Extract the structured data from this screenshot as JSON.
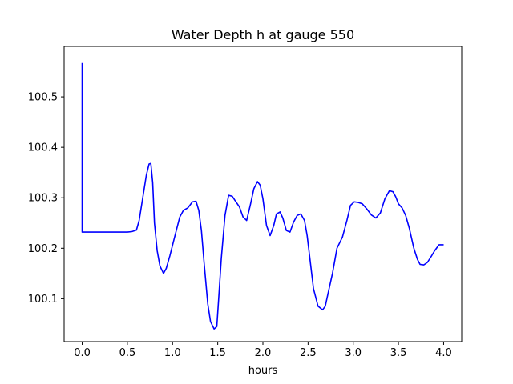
{
  "chart_data": {
    "type": "line",
    "title": "Water Depth h at gauge 550",
    "xlabel": "hours",
    "ylabel": "",
    "xlim": [
      -0.2,
      4.2
    ],
    "ylim": [
      100.015,
      100.6
    ],
    "xticks": [
      0.0,
      0.5,
      1.0,
      1.5,
      2.0,
      2.5,
      3.0,
      3.5,
      4.0
    ],
    "xtick_labels": [
      "0.0",
      "0.5",
      "1.0",
      "1.5",
      "2.0",
      "2.5",
      "3.0",
      "3.5",
      "4.0"
    ],
    "yticks": [
      100.1,
      100.2,
      100.3,
      100.4,
      100.5
    ],
    "ytick_labels": [
      "100.1",
      "100.2",
      "100.3",
      "100.4",
      "100.5"
    ],
    "grid": false,
    "line_color": "#0000ff",
    "series": [
      {
        "x": [
          0.0,
          0.0,
          0.0,
          0.1,
          0.3,
          0.5,
          0.55,
          0.6,
          0.63,
          0.67,
          0.71,
          0.74,
          0.76,
          0.78,
          0.8,
          0.83,
          0.86,
          0.9,
          0.93,
          0.97,
          1.02,
          1.08,
          1.12,
          1.17,
          1.22,
          1.26,
          1.29,
          1.32,
          1.35,
          1.39,
          1.42,
          1.46,
          1.49,
          1.51,
          1.54,
          1.58,
          1.62,
          1.66,
          1.69,
          1.74,
          1.78,
          1.82,
          1.86,
          1.9,
          1.94,
          1.97,
          2.0,
          2.04,
          2.08,
          2.12,
          2.15,
          2.19,
          2.22,
          2.26,
          2.3,
          2.34,
          2.38,
          2.42,
          2.46,
          2.49,
          2.52,
          2.56,
          2.61,
          2.66,
          2.69,
          2.72,
          2.77,
          2.82,
          2.88,
          2.93,
          2.97,
          3.01,
          3.05,
          3.1,
          3.15,
          3.2,
          3.25,
          3.3,
          3.35,
          3.4,
          3.44,
          3.47,
          3.5,
          3.54,
          3.58,
          3.62,
          3.67,
          3.71,
          3.74,
          3.78,
          3.82,
          3.86,
          3.9,
          3.95,
          4.0
        ],
        "values": [
          100.567,
          100.4,
          100.232,
          100.232,
          100.232,
          100.232,
          100.233,
          100.236,
          100.255,
          100.3,
          100.345,
          100.367,
          100.368,
          100.33,
          100.25,
          100.195,
          100.165,
          100.15,
          100.16,
          100.185,
          100.22,
          100.262,
          100.275,
          100.28,
          100.292,
          100.293,
          100.275,
          100.235,
          100.17,
          100.09,
          100.055,
          100.04,
          100.045,
          100.1,
          100.18,
          100.265,
          100.305,
          100.303,
          100.295,
          100.282,
          100.262,
          100.255,
          100.285,
          100.318,
          100.332,
          100.325,
          100.298,
          100.245,
          100.225,
          100.245,
          100.268,
          100.272,
          100.26,
          100.235,
          100.232,
          100.252,
          100.265,
          100.268,
          100.255,
          100.225,
          100.18,
          100.12,
          100.085,
          100.078,
          100.085,
          100.11,
          100.15,
          100.2,
          100.222,
          100.255,
          100.285,
          100.292,
          100.291,
          100.288,
          100.278,
          100.266,
          100.26,
          100.27,
          100.298,
          100.314,
          100.312,
          100.302,
          100.288,
          100.28,
          100.265,
          100.24,
          100.2,
          100.178,
          100.168,
          100.167,
          100.172,
          100.183,
          100.195,
          100.207,
          100.207
        ]
      }
    ]
  }
}
